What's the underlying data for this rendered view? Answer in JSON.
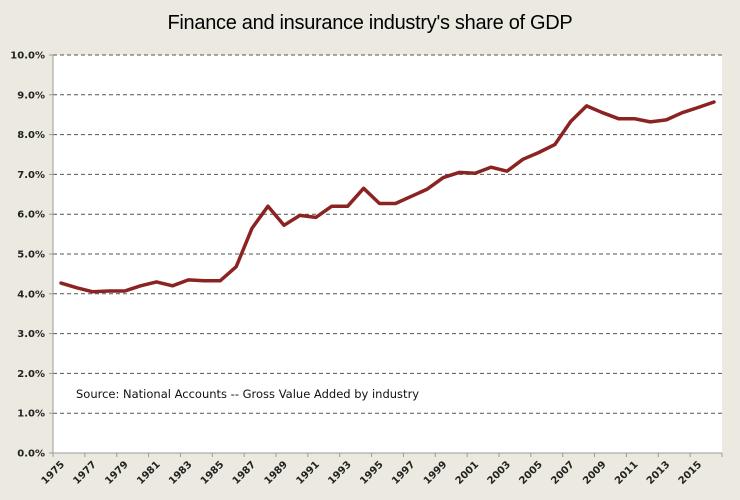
{
  "chart_data": {
    "type": "line",
    "title": "Finance and insurance industry's share of GDP",
    "xlabel": "",
    "ylabel": "",
    "ylim": [
      0,
      10
    ],
    "y_ticks": [
      "0.0%",
      "1.0%",
      "2.0%",
      "3.0%",
      "4.0%",
      "5.0%",
      "6.0%",
      "7.0%",
      "8.0%",
      "9.0%",
      "10.0%"
    ],
    "y_tick_values": [
      0,
      1,
      2,
      3,
      4,
      5,
      6,
      7,
      8,
      9,
      10
    ],
    "x_tick_labels": [
      "1975",
      "1977",
      "1979",
      "1981",
      "1983",
      "1985",
      "1987",
      "1989",
      "1991",
      "1993",
      "1995",
      "1997",
      "1999",
      "2001",
      "2003",
      "2005",
      "2007",
      "2009",
      "2011",
      "2013",
      "2015"
    ],
    "grid": true,
    "legend": "none",
    "annotation": "Source: National Accounts -- Gross Value Added by industry",
    "line_color": "#8B2323",
    "x": [
      1975,
      1976,
      1977,
      1978,
      1979,
      1980,
      1981,
      1982,
      1983,
      1984,
      1985,
      1986,
      1987,
      1988,
      1989,
      1990,
      1991,
      1992,
      1993,
      1994,
      1995,
      1996,
      1997,
      1998,
      1999,
      2000,
      2001,
      2002,
      2003,
      2004,
      2005,
      2006,
      2007,
      2008,
      2009,
      2010,
      2011,
      2012,
      2013,
      2014,
      2015,
      2016
    ],
    "series": [
      {
        "name": "Finance and insurance share of GDP (%)",
        "values": [
          4.27,
          4.15,
          4.05,
          4.07,
          4.07,
          4.2,
          4.3,
          4.2,
          4.35,
          4.33,
          4.33,
          4.68,
          5.65,
          6.2,
          5.72,
          5.97,
          5.92,
          6.2,
          6.2,
          6.65,
          6.27,
          6.27,
          6.45,
          6.63,
          6.92,
          7.05,
          7.03,
          7.18,
          7.08,
          7.38,
          7.55,
          7.75,
          8.33,
          8.72,
          8.55,
          8.4,
          8.4,
          8.32,
          8.37,
          8.55,
          8.68,
          8.82
        ]
      }
    ]
  }
}
